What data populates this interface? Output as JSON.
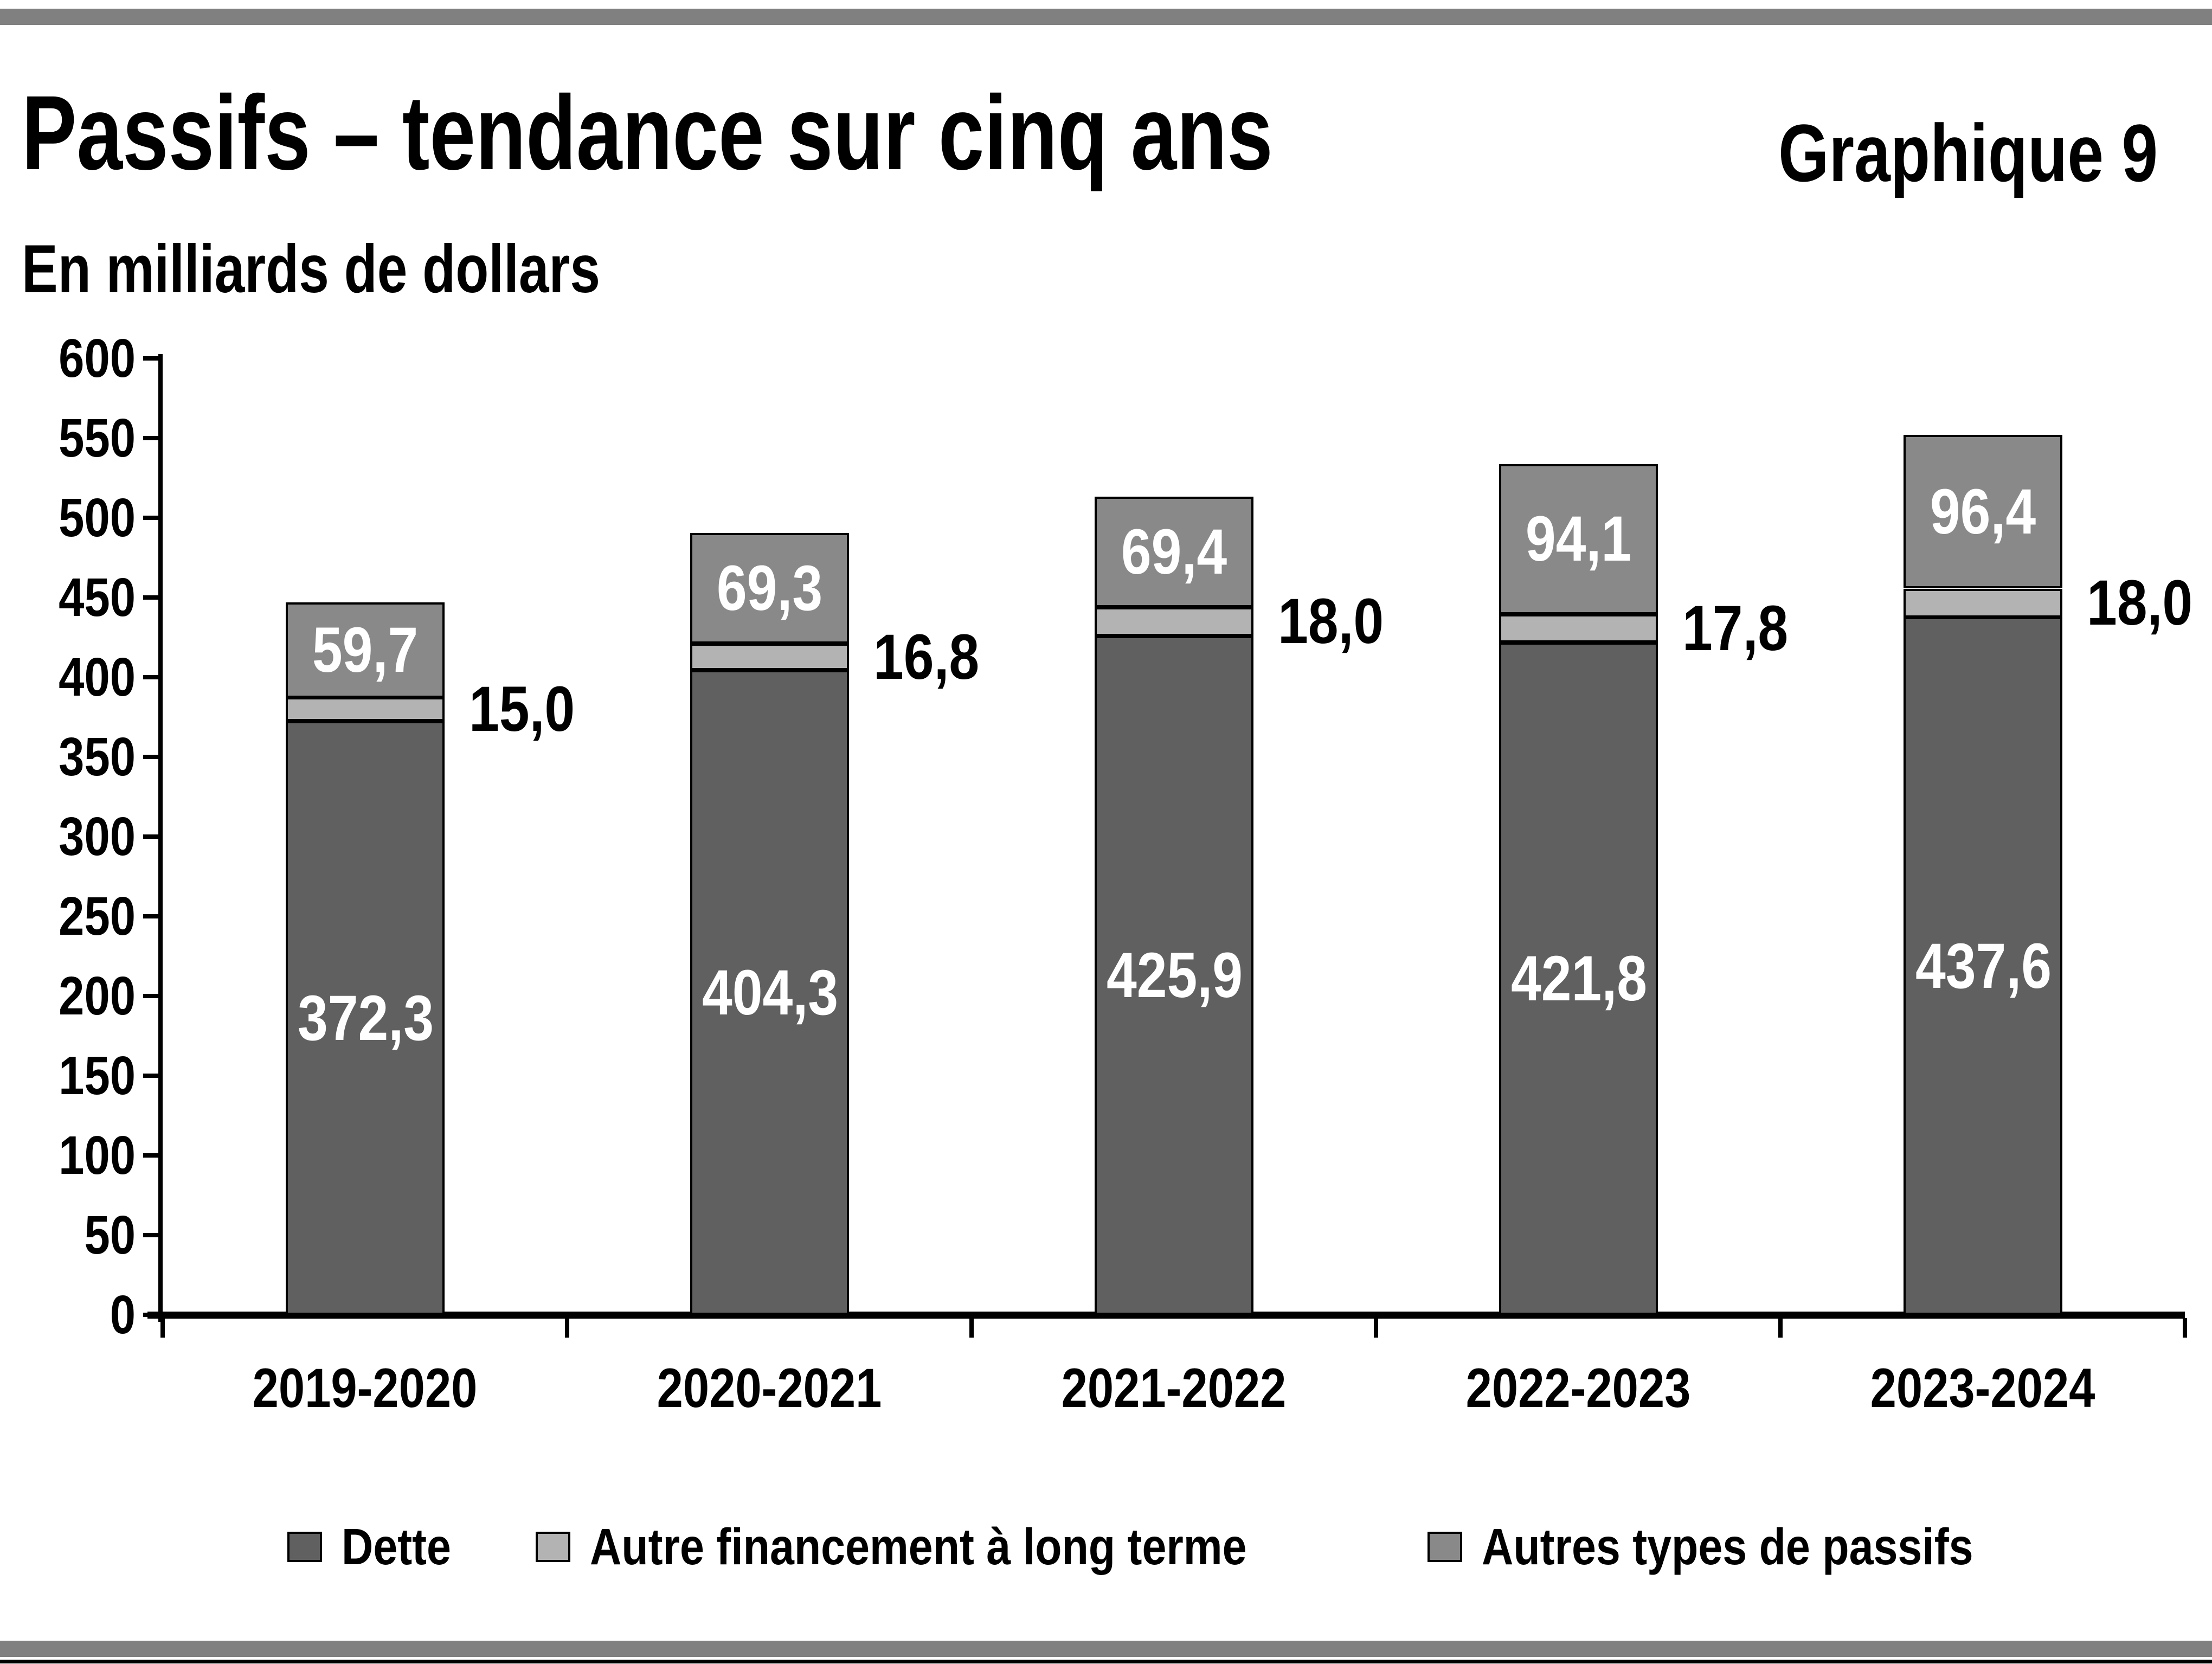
{
  "header": {
    "title": "Passifs – tendance sur cinq ans",
    "chart_number": "Graphique 9",
    "units_label": "En milliards de dollars"
  },
  "chart_data": {
    "type": "bar",
    "stacked": true,
    "title": "Passifs – tendance sur cinq ans",
    "ylabel": "En milliards de dollars",
    "xlabel": "",
    "ylim": [
      0,
      600
    ],
    "ytick_step": 50,
    "yticks": [
      "0",
      "50",
      "100",
      "150",
      "200",
      "250",
      "300",
      "350",
      "400",
      "450",
      "500",
      "550",
      "600"
    ],
    "grid": false,
    "legend_position": "bottom",
    "categories": [
      "2019-2020",
      "2020-2021",
      "2021-2022",
      "2022-2023",
      "2023-2024"
    ],
    "series": [
      {
        "name": "Dette",
        "color": "#606060",
        "label_color": "#ffffff",
        "label_position": "inside",
        "values": [
          372.3,
          404.3,
          425.9,
          421.8,
          437.6
        ],
        "labels": [
          "372,3",
          "404,3",
          "425,9",
          "421,8",
          "437,6"
        ]
      },
      {
        "name": "Autre financement à long terme",
        "color": "#b3b3b3",
        "label_color": "#000000",
        "label_position": "outside-right",
        "values": [
          15.0,
          16.8,
          18.0,
          17.8,
          18.0
        ],
        "labels": [
          "15,0",
          "16,8",
          "18,0",
          "17,8",
          "18,0"
        ]
      },
      {
        "name": "Autres types de passifs",
        "color": "#898989",
        "label_color": "#ffffff",
        "label_position": "inside",
        "values": [
          59.7,
          69.3,
          69.4,
          94.1,
          96.4
        ],
        "labels": [
          "59,7",
          "69,3",
          "69,4",
          "94,1",
          "96,4"
        ]
      }
    ],
    "totals": [
      447.0,
      490.4,
      513.3,
      533.7,
      552.0
    ]
  },
  "decor": {
    "strip_color": "#808080",
    "axis_color": "#000000",
    "background": "#ffffff"
  }
}
